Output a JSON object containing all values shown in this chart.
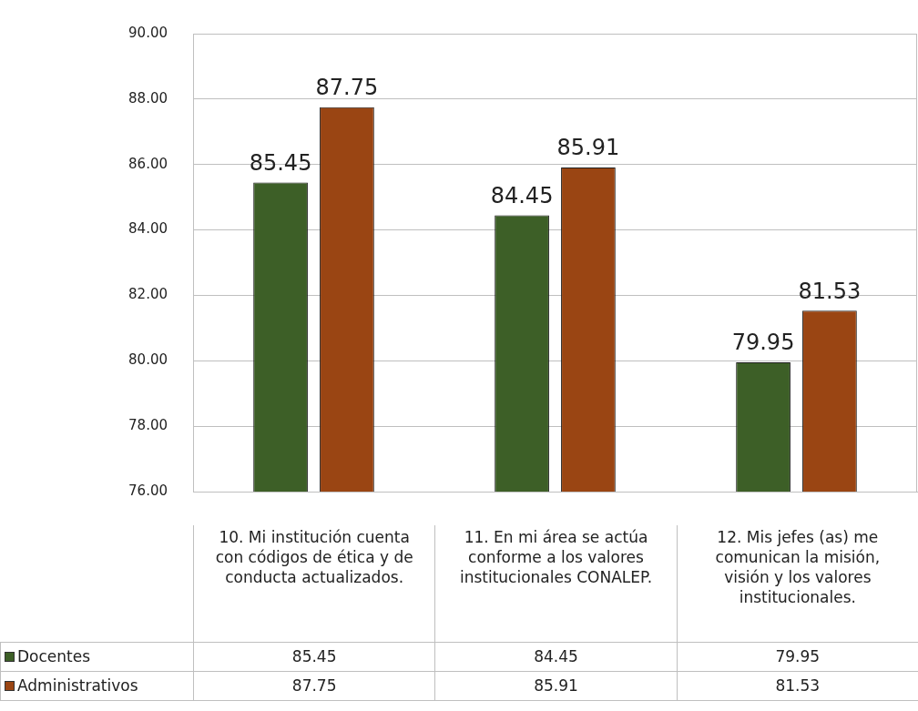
{
  "chart_data": {
    "type": "bar",
    "categories": [
      "10.  Mi institución cuenta con códigos de ética y de conducta actualizados.",
      "11. En mi área se actúa conforme a los valores institucionales CONALEP.",
      "12. Mis jefes (as) me comunican la misión, visión y los valores institucionales."
    ],
    "series": [
      {
        "name": "Docentes",
        "color": "#3d5f27",
        "values": [
          85.45,
          84.45,
          79.95
        ]
      },
      {
        "name": "Administrativos",
        "color": "#9a4513",
        "values": [
          87.75,
          85.91,
          81.53
        ]
      }
    ],
    "annotations": [
      "85.45",
      "84.45",
      "79.95",
      "87.75",
      "85.91",
      "81.53"
    ],
    "ylim": [
      76,
      90
    ],
    "yticks": [
      {
        "value": 76,
        "label": "76.00"
      },
      {
        "value": 78,
        "label": "78.00"
      },
      {
        "value": 80,
        "label": "80.00"
      },
      {
        "value": 82,
        "label": "82.00"
      },
      {
        "value": 84,
        "label": "84.00"
      },
      {
        "value": 86,
        "label": "86.00"
      },
      {
        "value": 88,
        "label": "88.00"
      },
      {
        "value": 90,
        "label": "90.00"
      }
    ],
    "grid": "y",
    "legend": "bottom",
    "data_labels": true
  }
}
